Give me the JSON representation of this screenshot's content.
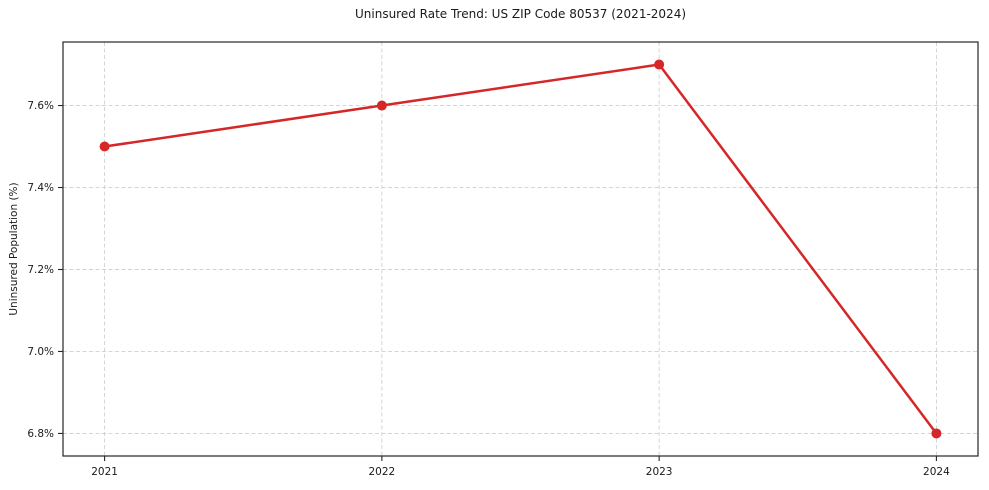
{
  "figure": {
    "background": "#ffffff"
  },
  "chart_data": {
    "type": "line",
    "title": "Uninsured Rate Trend: US ZIP Code 80537 (2021-2024)",
    "xlabel": "",
    "ylabel": "Uninsured Population (%)",
    "categories": [
      "2021",
      "2022",
      "2023",
      "2024"
    ],
    "x": [
      2021,
      2022,
      2023,
      2024
    ],
    "values": [
      7.5,
      7.6,
      7.7,
      6.8
    ],
    "y_ticks": [
      6.8,
      7.0,
      7.2,
      7.4,
      7.6
    ],
    "y_tick_labels": [
      "6.8%",
      "7.0%",
      "7.2%",
      "7.4%",
      "7.6%"
    ],
    "xlim": [
      2020.85,
      2024.15
    ],
    "ylim": [
      6.745,
      7.755
    ],
    "grid": true,
    "grid_line_style": "dashed",
    "legend_position": "none",
    "line_color": "#d62728",
    "marker": "circle",
    "grid_color": "#d0d0d0",
    "spine_color": "#262626",
    "text_color": "#1a1a1a"
  }
}
